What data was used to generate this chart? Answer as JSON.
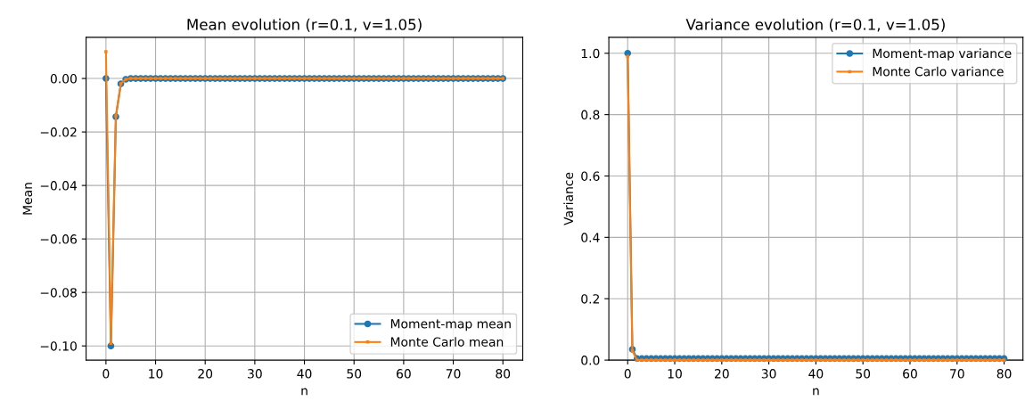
{
  "chart_data": [
    {
      "type": "line",
      "title": "Mean evolution (r=0.1, v=1.05)",
      "xlabel": "n",
      "ylabel": "Mean",
      "x": [
        0,
        1,
        2,
        3,
        4,
        5,
        6,
        7,
        8,
        9,
        10,
        11,
        12,
        13,
        14,
        15,
        16,
        17,
        18,
        19,
        20,
        21,
        22,
        23,
        24,
        25,
        26,
        27,
        28,
        29,
        30,
        31,
        32,
        33,
        34,
        35,
        36,
        37,
        38,
        39,
        40,
        41,
        42,
        43,
        44,
        45,
        46,
        47,
        48,
        49,
        50,
        51,
        52,
        53,
        54,
        55,
        56,
        57,
        58,
        59,
        60,
        61,
        62,
        63,
        64,
        65,
        66,
        67,
        68,
        69,
        70,
        71,
        72,
        73,
        74,
        75,
        76,
        77,
        78,
        79,
        80
      ],
      "xlim": [
        -4,
        84
      ],
      "xticks": [
        0,
        10,
        20,
        30,
        40,
        50,
        60,
        70,
        80
      ],
      "ylim": [
        -0.1053,
        0.0154
      ],
      "yticks": [
        {
          "value": 0,
          "label": "0.00"
        },
        {
          "value": -0.02,
          "label": "−0.02"
        },
        {
          "value": -0.04,
          "label": "−0.04"
        },
        {
          "value": -0.06,
          "label": "−0.06"
        },
        {
          "value": -0.08,
          "label": "−0.08"
        },
        {
          "value": -0.1,
          "label": "−0.10"
        }
      ],
      "grid": true,
      "legend": "lower right",
      "series": [
        {
          "name": "Moment-map mean",
          "color": "#1f77b4",
          "marker": "circle",
          "values": [
            0,
            -0.1,
            -0.0143,
            -0.002,
            -0.0003,
            0,
            0,
            0,
            0,
            0,
            0,
            0,
            0,
            0,
            0,
            0,
            0,
            0,
            0,
            0,
            0,
            0,
            0,
            0,
            0,
            0,
            0,
            0,
            0,
            0,
            0,
            0,
            0,
            0,
            0,
            0,
            0,
            0,
            0,
            0,
            0,
            0,
            0,
            0,
            0,
            0,
            0,
            0,
            0,
            0,
            0,
            0,
            0,
            0,
            0,
            0,
            0,
            0,
            0,
            0,
            0,
            0,
            0,
            0,
            0,
            0,
            0,
            0,
            0,
            0,
            0,
            0,
            0,
            0,
            0,
            0,
            0,
            0,
            0,
            0,
            0
          ]
        },
        {
          "name": "Monte Carlo mean",
          "color": "#ff7f0e",
          "marker": "square",
          "values": [
            0.01,
            -0.099,
            -0.014,
            -0.002,
            -0.0003,
            0,
            0,
            0,
            0,
            0,
            0,
            0,
            0,
            0,
            0,
            0,
            0,
            0,
            0,
            0,
            0,
            0,
            0,
            0,
            0,
            0,
            0,
            0,
            0,
            0,
            0,
            0,
            0,
            0,
            0,
            0,
            0,
            0,
            0,
            0,
            0,
            0,
            0,
            0,
            0,
            0,
            0,
            0,
            0,
            0,
            0,
            0,
            0,
            0,
            0,
            0,
            0,
            0,
            0,
            0,
            0,
            0,
            0,
            0,
            0,
            0,
            0,
            0,
            0,
            0,
            0,
            0,
            0,
            0,
            0,
            0,
            0,
            0,
            0,
            0,
            0
          ]
        }
      ]
    },
    {
      "type": "line",
      "title": "Variance evolution (r=0.1, v=1.05)",
      "xlabel": "n",
      "ylabel": "Variance",
      "x": [
        0,
        1,
        2,
        3,
        4,
        5,
        6,
        7,
        8,
        9,
        10,
        11,
        12,
        13,
        14,
        15,
        16,
        17,
        18,
        19,
        20,
        21,
        22,
        23,
        24,
        25,
        26,
        27,
        28,
        29,
        30,
        31,
        32,
        33,
        34,
        35,
        36,
        37,
        38,
        39,
        40,
        41,
        42,
        43,
        44,
        45,
        46,
        47,
        48,
        49,
        50,
        51,
        52,
        53,
        54,
        55,
        56,
        57,
        58,
        59,
        60,
        61,
        62,
        63,
        64,
        65,
        66,
        67,
        68,
        69,
        70,
        71,
        72,
        73,
        74,
        75,
        76,
        77,
        78,
        79,
        80
      ],
      "xlim": [
        -4,
        84
      ],
      "xticks": [
        0,
        10,
        20,
        30,
        40,
        50,
        60,
        70,
        80
      ],
      "ylim": [
        0,
        1.052
      ],
      "yticks": [
        {
          "value": 0,
          "label": "0.0"
        },
        {
          "value": 0.2,
          "label": "0.2"
        },
        {
          "value": 0.4,
          "label": "0.4"
        },
        {
          "value": 0.6,
          "label": "0.6"
        },
        {
          "value": 0.8,
          "label": "0.8"
        },
        {
          "value": 1.0,
          "label": "1.0"
        }
      ],
      "grid": true,
      "legend": "top right",
      "series": [
        {
          "name": "Moment-map variance",
          "color": "#1f77b4",
          "marker": "circle",
          "values": [
            1.0,
            0.035,
            0.005,
            0.005,
            0.005,
            0.005,
            0.005,
            0.005,
            0.005,
            0.005,
            0.005,
            0.005,
            0.005,
            0.005,
            0.005,
            0.005,
            0.005,
            0.005,
            0.005,
            0.005,
            0.005,
            0.005,
            0.005,
            0.005,
            0.005,
            0.005,
            0.005,
            0.005,
            0.005,
            0.005,
            0.005,
            0.005,
            0.005,
            0.005,
            0.005,
            0.005,
            0.005,
            0.005,
            0.005,
            0.005,
            0.005,
            0.005,
            0.005,
            0.005,
            0.005,
            0.005,
            0.005,
            0.005,
            0.005,
            0.005,
            0.005,
            0.005,
            0.005,
            0.005,
            0.005,
            0.005,
            0.005,
            0.005,
            0.005,
            0.005,
            0.005,
            0.005,
            0.005,
            0.005,
            0.005,
            0.005,
            0.005,
            0.005,
            0.005,
            0.005,
            0.005,
            0.005,
            0.005,
            0.005,
            0.005,
            0.005,
            0.005,
            0.005,
            0.005,
            0.005,
            0.005
          ]
        },
        {
          "name": "Monte Carlo variance",
          "color": "#ff7f0e",
          "marker": "square",
          "values": [
            0.99,
            0.03,
            0,
            0,
            0,
            0,
            0,
            0,
            0,
            0,
            0,
            0,
            0,
            0,
            0,
            0,
            0,
            0,
            0,
            0,
            0,
            0,
            0,
            0,
            0,
            0,
            0,
            0,
            0,
            0,
            0,
            0,
            0,
            0,
            0,
            0,
            0,
            0,
            0,
            0,
            0,
            0,
            0,
            0,
            0,
            0,
            0,
            0,
            0,
            0,
            0,
            0,
            0,
            0,
            0,
            0,
            0,
            0,
            0,
            0,
            0,
            0,
            0,
            0,
            0,
            0,
            0,
            0,
            0,
            0,
            0,
            0,
            0,
            0,
            0,
            0,
            0,
            0,
            0,
            0,
            0
          ]
        }
      ]
    }
  ]
}
